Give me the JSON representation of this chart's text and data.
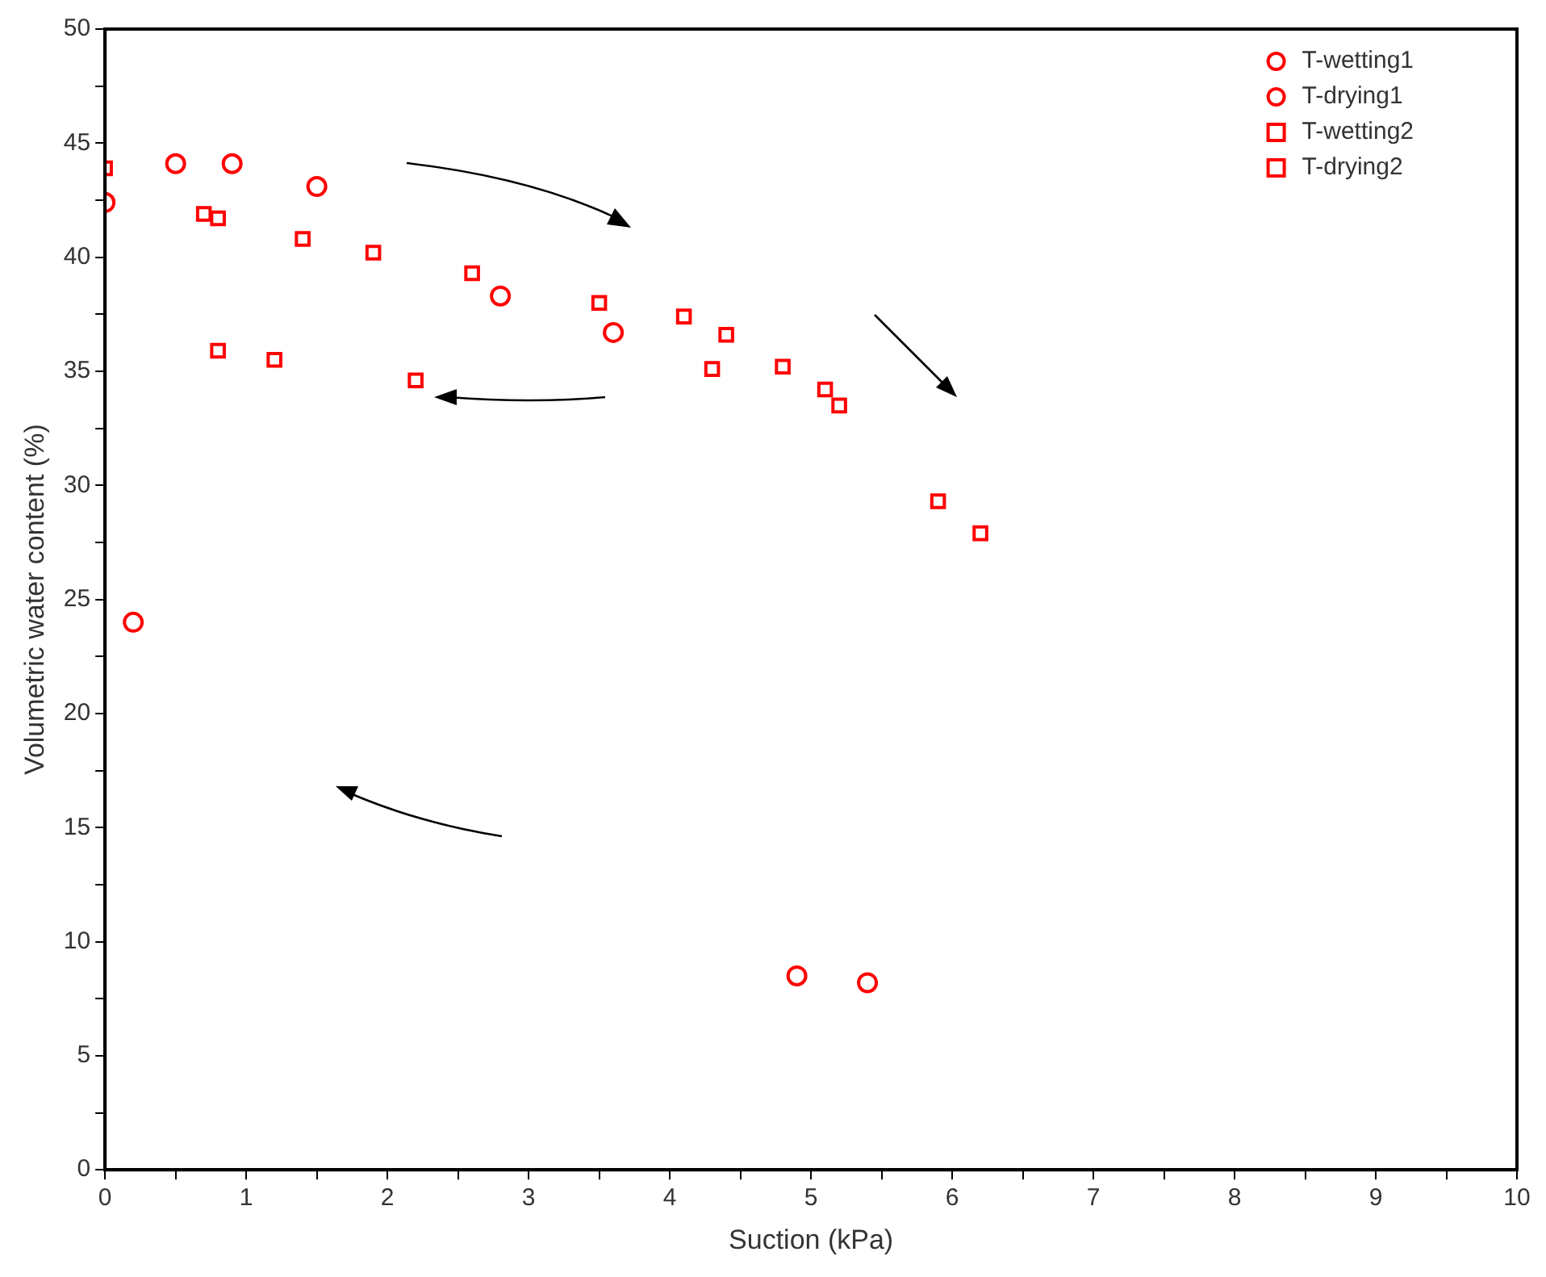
{
  "chart_data": {
    "type": "scatter",
    "xlabel": "Suction (kPa)",
    "ylabel": "Volumetric water content (%)",
    "xlim": [
      0,
      10
    ],
    "ylim": [
      0,
      50
    ],
    "xticks": [
      0,
      {
        "value": 0.5,
        "label": null
      },
      1,
      {
        "value": 1.5,
        "label": null
      },
      2,
      {
        "value": 2.5,
        "label": null
      },
      3,
      {
        "value": 3.5,
        "label": null
      },
      4,
      {
        "value": 4.5,
        "label": null
      },
      5,
      {
        "value": 5.5,
        "label": null
      },
      6,
      {
        "value": 6.5,
        "label": null
      },
      7,
      {
        "value": 7.5,
        "label": null
      },
      8,
      {
        "value": 8.5,
        "label": null
      },
      9,
      {
        "value": 9.5,
        "label": null
      },
      10
    ],
    "yticks": [
      0,
      {
        "value": 2.5,
        "label": null
      },
      5,
      {
        "value": 7.5,
        "label": null
      },
      10,
      {
        "value": 12.5,
        "label": null
      },
      15,
      {
        "value": 17.5,
        "label": null
      },
      20,
      {
        "value": 22.5,
        "label": null
      },
      25,
      {
        "value": 27.5,
        "label": null
      },
      30,
      {
        "value": 32.5,
        "label": null
      },
      35,
      {
        "value": 37.5,
        "label": null
      },
      40,
      {
        "value": 42.5,
        "label": null
      },
      45,
      {
        "value": 47.5,
        "label": null
      },
      50
    ],
    "grid": false,
    "legend": "top right",
    "series": [
      {
        "name": "T-wetting1",
        "color": "#ff0000",
        "marker": "circle",
        "x": [
          0.2,
          4.9,
          5.4
        ],
        "values": [
          24.0,
          8.5,
          8.2
        ]
      },
      {
        "name": "T-drying1",
        "color": "#ff0000",
        "marker": "circle",
        "x": [
          0,
          0.5,
          0.9,
          1.5,
          2.8,
          3.6
        ],
        "values": [
          42.4,
          44.1,
          44.1,
          43.1,
          38.3,
          36.7
        ]
      },
      {
        "name": "T-wetting2",
        "color": "#ff0000",
        "marker": "square",
        "x": [
          0.8,
          1.2,
          2.2,
          4.3
        ],
        "values": [
          35.9,
          35.5,
          34.6,
          35.1
        ]
      },
      {
        "name": "T-drying2",
        "color": "#ff0000",
        "marker": "square",
        "x": [
          0,
          0.7,
          0.8,
          1.4,
          1.9,
          2.6,
          3.5,
          4.1,
          4.4,
          4.8,
          5.1,
          5.2,
          5.9,
          6.2
        ],
        "values": [
          43.9,
          41.9,
          41.7,
          40.8,
          40.2,
          39.3,
          38.0,
          37.4,
          36.6,
          35.2,
          34.2,
          33.5,
          29.3,
          27.9
        ]
      }
    ]
  }
}
